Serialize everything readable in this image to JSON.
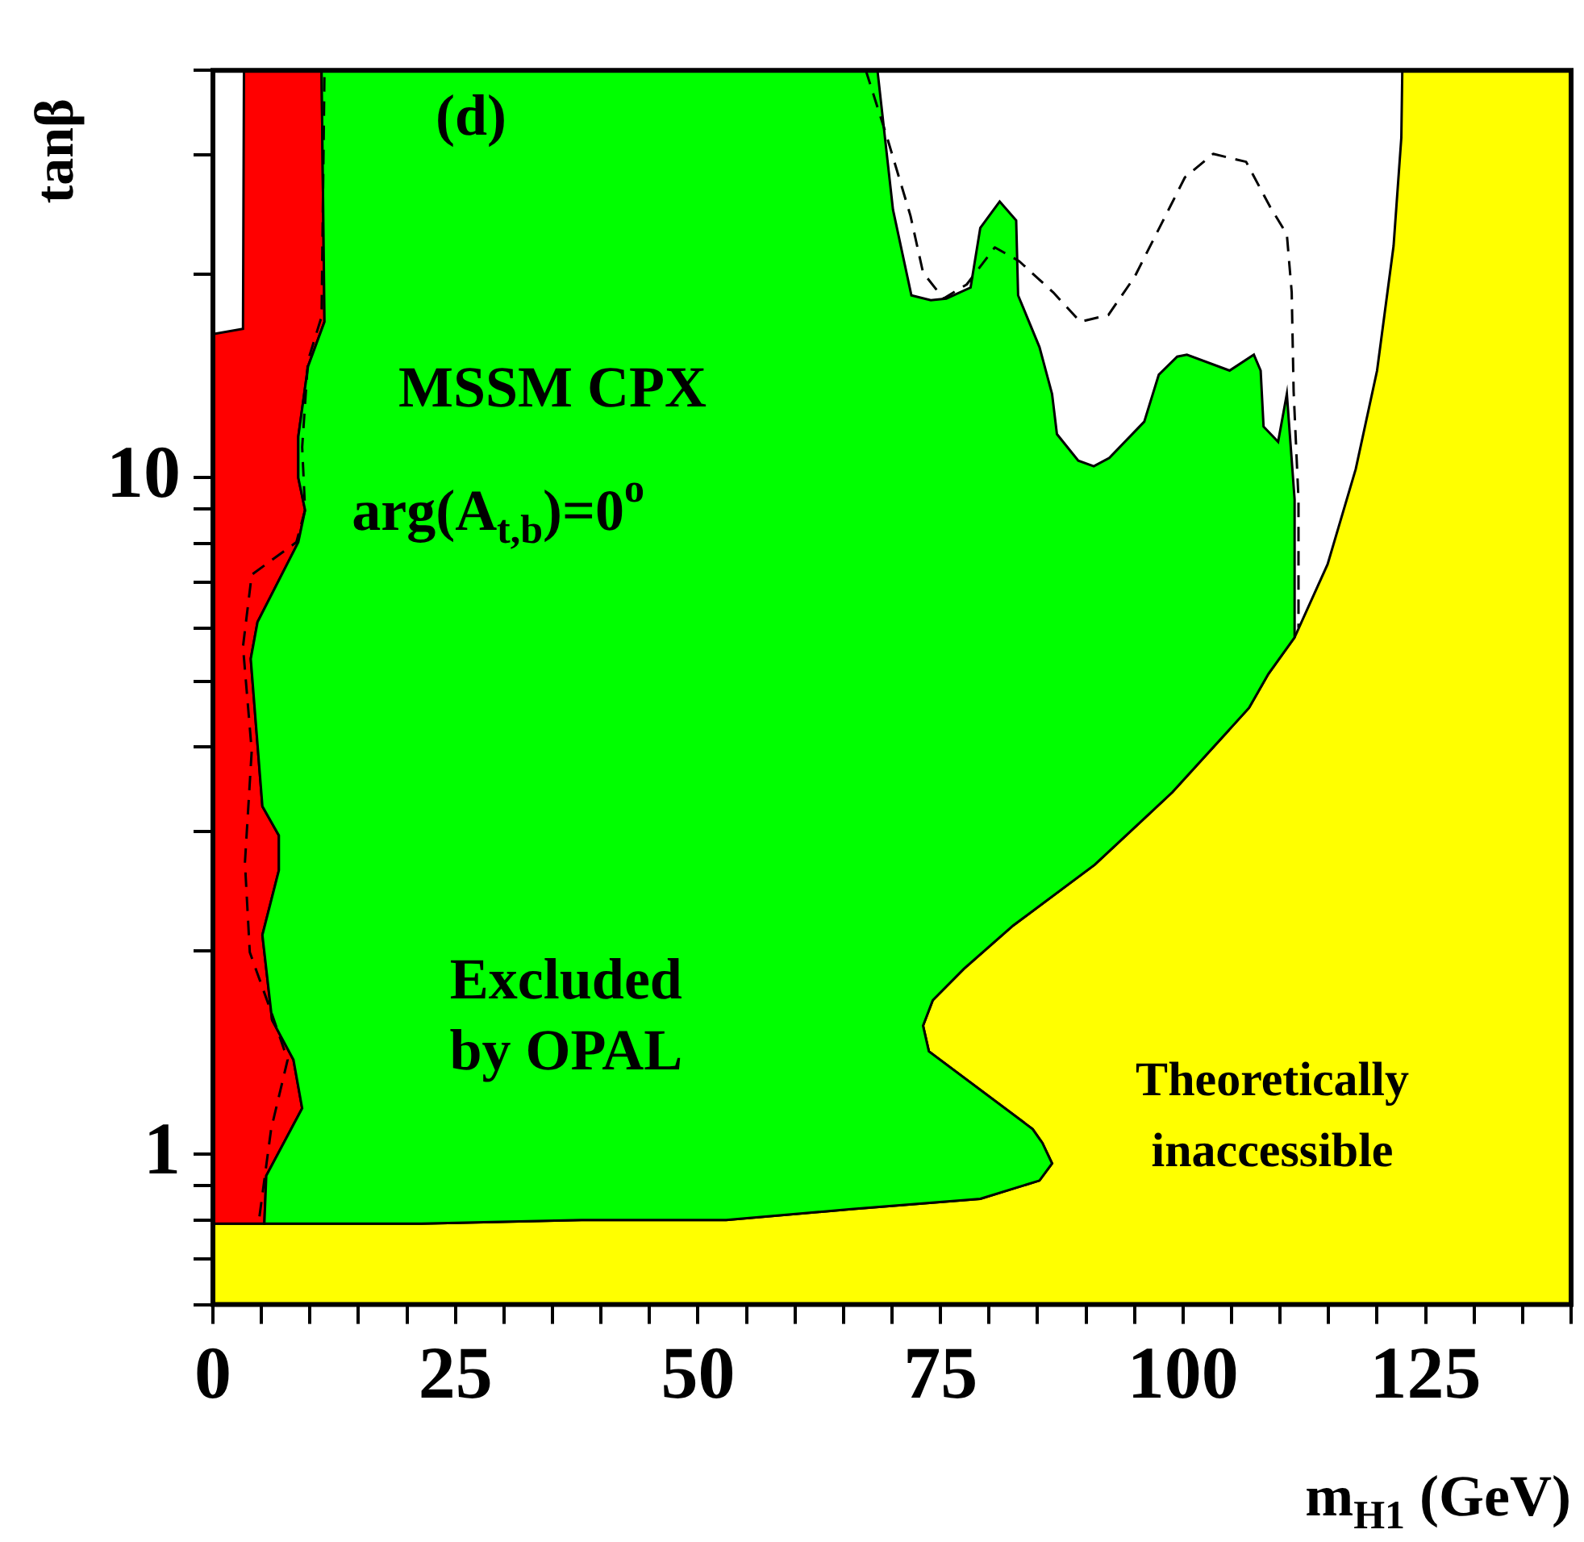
{
  "chart_data": {
    "type": "area",
    "xlabel": "m$_{H1}$ (GeV)",
    "ylabel": "tanβ",
    "log": true,
    "xlim": [
      0,
      140
    ],
    "ylim": [
      0.6,
      40
    ],
    "xticks": [
      0,
      {
        "value": 5,
        "label": null
      },
      {
        "value": 10,
        "label": null
      },
      {
        "value": 15,
        "label": null
      },
      {
        "value": 20,
        "label": null
      },
      25,
      {
        "value": 30,
        "label": null
      },
      {
        "value": 35,
        "label": null
      },
      {
        "value": 40,
        "label": null
      },
      {
        "value": 45,
        "label": null
      },
      50,
      {
        "value": 55,
        "label": null
      },
      {
        "value": 60,
        "label": null
      },
      {
        "value": 65,
        "label": null
      },
      {
        "value": 70,
        "label": null
      },
      75,
      {
        "value": 80,
        "label": null
      },
      {
        "value": 85,
        "label": null
      },
      {
        "value": 90,
        "label": null
      },
      {
        "value": 95,
        "label": null
      },
      100,
      {
        "value": 105,
        "label": null
      },
      {
        "value": 110,
        "label": null
      },
      {
        "value": 115,
        "label": null
      },
      {
        "value": 120,
        "label": null
      },
      125,
      {
        "value": 130,
        "label": null
      },
      {
        "value": 135,
        "label": null
      },
      {
        "value": 140,
        "label": null
      }
    ],
    "yticks": [
      {
        "value": 0.6,
        "label": null
      },
      {
        "value": 0.7,
        "label": null
      },
      {
        "value": 0.8,
        "label": null
      },
      {
        "value": 0.9,
        "label": null
      },
      1,
      {
        "value": 2,
        "label": null
      },
      {
        "value": 3,
        "label": null
      },
      {
        "value": 4,
        "label": null
      },
      {
        "value": 5,
        "label": null
      },
      {
        "value": 6,
        "label": null
      },
      {
        "value": 7,
        "label": null
      },
      {
        "value": 8,
        "label": null
      },
      {
        "value": 9,
        "label": null
      },
      10,
      {
        "value": 20,
        "label": null
      },
      {
        "value": 30,
        "label": null
      },
      {
        "value": 40,
        "label": null
      }
    ],
    "tick_labels": "xy",
    "annotations": [
      "(d)",
      "MSSM CPX",
      "arg(A$_{t,b}$)=0$^{o}$",
      "Excluded\nby OPAL",
      "Theoretically\ninaccessible"
    ],
    "series": [
      {
        "color": "#ffff00",
        "x": [
          0,
          0,
          5.3,
          21.5,
          38.0,
          52.9,
          65.8,
          79.1,
          85.2,
          86.5,
          85.5,
          84.5,
          73.8,
          73.2,
          74.2,
          77.4,
          82.5,
          90.9,
          98.9,
          106.8,
          108.8,
          111.5,
          114.9,
          117.8,
          120.0,
          121.7,
          122.5,
          122.6,
          140,
          140,
          0
        ],
        "values": [
          0.6,
          0.79,
          0.79,
          0.79,
          0.8,
          0.8,
          0.83,
          0.86,
          0.915,
          0.97,
          1.04,
          1.09,
          1.42,
          1.55,
          1.69,
          1.88,
          2.18,
          2.68,
          3.43,
          4.57,
          5.13,
          5.81,
          7.45,
          10.3,
          14.4,
          22.0,
          31.8,
          40,
          40,
          0.6,
          0.6
        ]
      },
      {
        "color": "#ff0000",
        "x": [
          0,
          0,
          3.1,
          3.2,
          11.2,
          11.5,
          9.8,
          8.8,
          8.8,
          9.5,
          8.8,
          4.6,
          3.9,
          5.1,
          6.8,
          6.8,
          5.1,
          6.1,
          8.3,
          9.2,
          5.5,
          5.3,
          0
        ],
        "values": [
          0.79,
          16.3,
          16.6,
          40,
          40,
          17.0,
          14.6,
          11.5,
          10,
          8.96,
          8.03,
          6.12,
          5.4,
          3.27,
          2.96,
          2.63,
          2.11,
          1.58,
          1.38,
          1.17,
          0.93,
          0.79,
          0.79
        ]
      },
      {
        "color": "#00ff00",
        "x": [
          11.2,
          11.5,
          9.8,
          8.8,
          8.8,
          9.5,
          8.8,
          4.6,
          3.9,
          5.1,
          6.8,
          6.8,
          5.1,
          6.1,
          8.3,
          9.2,
          5.5,
          5.3,
          21.5,
          38.0,
          52.9,
          65.8,
          79.1,
          85.2,
          86.5,
          85.5,
          84.5,
          73.8,
          73.2,
          74.2,
          77.4,
          82.5,
          90.9,
          98.9,
          106.8,
          108.8,
          111.5,
          111.5,
          110.7,
          109.8,
          108.3,
          108.0,
          107.3,
          104.8,
          100.4,
          99.4,
          97.5,
          96.0,
          92.4,
          90.8,
          89.2,
          87.0,
          86.5,
          85.2,
          83.0,
          82.8,
          81.1,
          79.1,
          78.1,
          75.6,
          74.0,
          72.0,
          70.1,
          68.5,
          11.2
        ],
        "values": [
          40,
          17.0,
          14.6,
          11.5,
          10,
          8.96,
          8.03,
          6.12,
          5.4,
          3.27,
          2.96,
          2.63,
          2.11,
          1.58,
          1.38,
          1.17,
          0.93,
          0.79,
          0.79,
          0.8,
          0.8,
          0.83,
          0.86,
          0.915,
          0.97,
          1.04,
          1.09,
          1.42,
          1.55,
          1.69,
          1.88,
          2.18,
          2.68,
          3.43,
          4.57,
          5.13,
          5.81,
          9.29,
          13.3,
          11.3,
          11.9,
          14.4,
          15.2,
          14.4,
          15.2,
          15.1,
          14.2,
          12.1,
          10.7,
          10.4,
          10.6,
          11.6,
          13.3,
          15.6,
          18.6,
          24.0,
          25.6,
          23.4,
          19.1,
          18.4,
          18.3,
          18.6,
          24.9,
          40,
          40
        ]
      },
      {
        "type": "line",
        "color": "#000000",
        "line_style": "dashed",
        "x": [
          4.8,
          6.0,
          7.7,
          6.1,
          3.8,
          3.3,
          4.0,
          3.1,
          4.0,
          8.6,
          9.5,
          9.2,
          9.8,
          11.2,
          11.5
        ],
        "values": [
          0.81,
          1.09,
          1.38,
          1.61,
          1.99,
          2.7,
          3.95,
          5.63,
          7.19,
          8.03,
          8.96,
          11.1,
          14.9,
          17.3,
          40
        ]
      },
      {
        "type": "line",
        "color": "#000000",
        "line_style": "dashed",
        "x": [
          67.3,
          69.5,
          71.9,
          73.2,
          75.3,
          77.7,
          80.6,
          83.1,
          86.6,
          89.4,
          92.3,
          95.0,
          100.2,
          103.1,
          106.5,
          109.0,
          110.7,
          111.2,
          111.4,
          111.9,
          111.9
        ],
        "values": [
          40,
          31.8,
          24.4,
          20.1,
          18.4,
          19.3,
          21.9,
          20.9,
          18.8,
          17.0,
          17.4,
          19.8,
          27.8,
          30.1,
          29.3,
          25.1,
          22.9,
          18.8,
          13.4,
          9.29,
          6.0
        ]
      }
    ]
  }
}
